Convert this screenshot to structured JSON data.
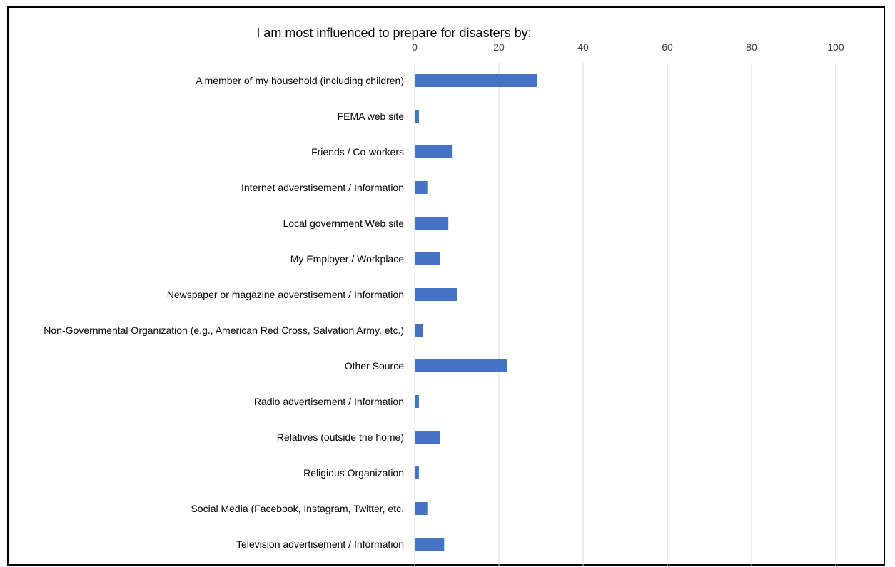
{
  "chart_data": {
    "type": "bar",
    "orientation": "horizontal",
    "title": "I am most influenced to prepare for disasters by:",
    "xlabel": "",
    "ylabel": "",
    "xlim": [
      0,
      100
    ],
    "x_ticks": [
      0,
      20,
      40,
      60,
      80,
      100
    ],
    "x_axis_position": "top",
    "grid": true,
    "legend": "none",
    "bar_color": "#4472C4",
    "grid_color": "#D9D9D9",
    "categories": [
      "A member of my household (including children)",
      "FEMA web site",
      "Friends / Co-workers",
      "Internet adverstisement / Information",
      "Local government Web site",
      "My Employer / Workplace",
      "Newspaper or magazine adverstisement / Information",
      "Non-Governmental Organization (e.g., American Red Cross, Salvation Army, etc.)",
      "Other Source",
      "Radio advertisement / Information",
      "Relatives (outside the home)",
      "Religious Organization",
      "Social Media (Facebook, Instagram, Twitter, etc.",
      "Television advertisement / Information"
    ],
    "values": [
      29,
      1,
      9,
      3,
      8,
      6,
      10,
      2,
      22,
      1,
      6,
      1,
      3,
      7
    ]
  }
}
